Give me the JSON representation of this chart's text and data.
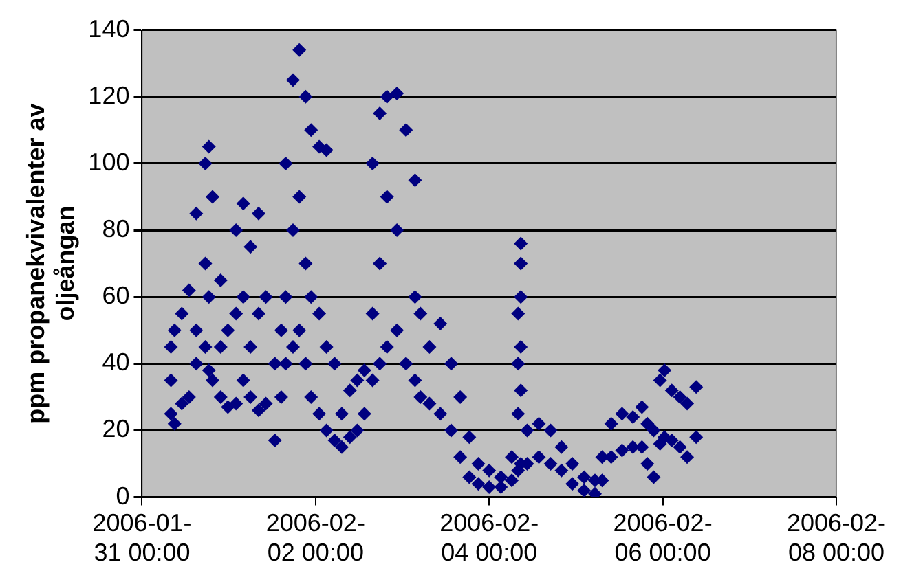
{
  "chart_data": {
    "type": "scatter",
    "ylabel": "ppm propanekvivalenter av oljeångan",
    "x": [
      "2006-01-31T08:00",
      "2006-01-31T08:00",
      "2006-01-31T08:00",
      "2006-01-31T09:00",
      "2006-01-31T09:00",
      "2006-01-31T11:00",
      "2006-01-31T11:00",
      "2006-01-31T13:00",
      "2006-01-31T13:00",
      "2006-01-31T15:00",
      "2006-01-31T15:00",
      "2006-01-31T15:00",
      "2006-01-31T17:30",
      "2006-01-31T17:30",
      "2006-01-31T17:30",
      "2006-01-31T18:30",
      "2006-01-31T18:30",
      "2006-01-31T18:30",
      "2006-01-31T19:30",
      "2006-01-31T19:30",
      "2006-01-31T21:45",
      "2006-01-31T21:45",
      "2006-01-31T21:45",
      "2006-01-31T23:45",
      "2006-01-31T23:45",
      "2006-02-01T02:00",
      "2006-02-01T02:00",
      "2006-02-01T02:00",
      "2006-02-01T04:00",
      "2006-02-01T04:00",
      "2006-02-01T04:00",
      "2006-02-01T06:00",
      "2006-02-01T06:00",
      "2006-02-01T06:00",
      "2006-02-01T08:15",
      "2006-02-01T08:15",
      "2006-02-01T08:15",
      "2006-02-01T10:15",
      "2006-02-01T10:15",
      "2006-02-01T12:45",
      "2006-02-01T12:45",
      "2006-02-01T14:30",
      "2006-02-01T14:30",
      "2006-02-01T15:45",
      "2006-02-01T15:45",
      "2006-02-01T15:45",
      "2006-02-01T17:45",
      "2006-02-01T17:45",
      "2006-02-01T17:45",
      "2006-02-01T19:30",
      "2006-02-01T19:30",
      "2006-02-01T19:30",
      "2006-02-01T21:15",
      "2006-02-01T21:15",
      "2006-02-01T21:15",
      "2006-02-01T22:45",
      "2006-02-01T22:45",
      "2006-02-01T22:45",
      "2006-02-02T01:00",
      "2006-02-02T01:00",
      "2006-02-02T01:00",
      "2006-02-02T03:00",
      "2006-02-02T03:00",
      "2006-02-02T03:00",
      "2006-02-02T05:15",
      "2006-02-02T05:15",
      "2006-02-02T07:15",
      "2006-02-02T07:15",
      "2006-02-02T09:30",
      "2006-02-02T09:30",
      "2006-02-02T11:30",
      "2006-02-02T11:30",
      "2006-02-02T13:30",
      "2006-02-02T13:30",
      "2006-02-02T15:45",
      "2006-02-02T15:45",
      "2006-02-02T15:45",
      "2006-02-02T17:45",
      "2006-02-02T17:45",
      "2006-02-02T17:45",
      "2006-02-02T19:45",
      "2006-02-02T19:45",
      "2006-02-02T19:45",
      "2006-02-02T22:30",
      "2006-02-02T22:30",
      "2006-02-02T22:30",
      "2006-02-03T01:00",
      "2006-02-03T01:00",
      "2006-02-03T03:30",
      "2006-02-03T03:30",
      "2006-02-03T03:30",
      "2006-02-03T05:00",
      "2006-02-03T05:00",
      "2006-02-03T07:30",
      "2006-02-03T07:30",
      "2006-02-03T10:30",
      "2006-02-03T10:30",
      "2006-02-03T13:30",
      "2006-02-03T13:30",
      "2006-02-03T16:00",
      "2006-02-03T16:00",
      "2006-02-03T18:30",
      "2006-02-03T18:30",
      "2006-02-03T21:00",
      "2006-02-03T21:00",
      "2006-02-04T00:00",
      "2006-02-04T00:00",
      "2006-02-04T03:15",
      "2006-02-04T03:15",
      "2006-02-04T06:15",
      "2006-02-04T06:15",
      "2006-02-04T08:00",
      "2006-02-04T08:00",
      "2006-02-04T08:00",
      "2006-02-04T08:00",
      "2006-02-04T08:45",
      "2006-02-04T08:45",
      "2006-02-04T08:45",
      "2006-02-04T08:45",
      "2006-02-04T08:45",
      "2006-02-04T08:45",
      "2006-02-04T10:30",
      "2006-02-04T10:30",
      "2006-02-04T13:45",
      "2006-02-04T13:45",
      "2006-02-04T17:00",
      "2006-02-04T17:00",
      "2006-02-04T20:00",
      "2006-02-04T20:00",
      "2006-02-04T23:00",
      "2006-02-04T23:00",
      "2006-02-05T02:15",
      "2006-02-05T02:15",
      "2006-02-05T05:15",
      "2006-02-05T05:15",
      "2006-02-05T07:15",
      "2006-02-05T07:15",
      "2006-02-05T09:45",
      "2006-02-05T09:45",
      "2006-02-05T12:45",
      "2006-02-05T12:45",
      "2006-02-05T15:45",
      "2006-02-05T15:45",
      "2006-02-05T18:15",
      "2006-02-05T18:15",
      "2006-02-05T19:45",
      "2006-02-05T19:45",
      "2006-02-05T21:30",
      "2006-02-05T21:30",
      "2006-02-05T23:15",
      "2006-02-05T23:15",
      "2006-02-06T00:30",
      "2006-02-06T00:30",
      "2006-02-06T02:30",
      "2006-02-06T02:30",
      "2006-02-06T04:45",
      "2006-02-06T04:45",
      "2006-02-06T06:45",
      "2006-02-06T06:45",
      "2006-02-06T09:15",
      "2006-02-06T09:15"
    ],
    "values": [
      25,
      45,
      35,
      22,
      50,
      28,
      55,
      30,
      62,
      40,
      85,
      50,
      45,
      100,
      70,
      38,
      105,
      60,
      35,
      90,
      30,
      65,
      45,
      27,
      50,
      28,
      80,
      55,
      35,
      88,
      60,
      30,
      75,
      45,
      26,
      85,
      55,
      28,
      60,
      17,
      40,
      30,
      50,
      40,
      100,
      60,
      45,
      125,
      80,
      50,
      134,
      90,
      40,
      120,
      70,
      30,
      110,
      60,
      25,
      105,
      55,
      20,
      104,
      45,
      17,
      40,
      15,
      25,
      18,
      32,
      20,
      35,
      25,
      38,
      35,
      55,
      100,
      40,
      115,
      70,
      45,
      120,
      90,
      50,
      121,
      80,
      40,
      110,
      35,
      95,
      60,
      30,
      55,
      28,
      45,
      25,
      52,
      20,
      40,
      12,
      30,
      6,
      18,
      4,
      10,
      3,
      8,
      3,
      6,
      5,
      12,
      8,
      25,
      40,
      55,
      10,
      32,
      45,
      60,
      70,
      76,
      10,
      20,
      12,
      22,
      10,
      20,
      8,
      15,
      4,
      10,
      2,
      6,
      1,
      5,
      5,
      12,
      12,
      22,
      14,
      25,
      15,
      24,
      15,
      27,
      10,
      22,
      6,
      20,
      16,
      35,
      18,
      38,
      17,
      32,
      15,
      30,
      12,
      28,
      18,
      33
    ],
    "color": "#000080",
    "marker": "diamond",
    "grid": "y",
    "legend": false,
    "xlim": [
      "2006-01-31T00:00",
      "2006-02-08T00:00"
    ],
    "xticks": [
      {
        "value": "2006-01-31T00:00",
        "label": "2006-01-31 00:00"
      },
      {
        "value": "2006-02-02T00:00",
        "label": "2006-02-02 00:00"
      },
      {
        "value": "2006-02-04T00:00",
        "label": "2006-02-04 00:00"
      },
      {
        "value": "2006-02-06T00:00",
        "label": "2006-02-06 00:00"
      },
      {
        "value": "2006-02-08T00:00",
        "label": "2006-02-08 00:00"
      }
    ],
    "ylim": [
      0,
      140
    ],
    "yticks": [
      0,
      20,
      40,
      60,
      80,
      100,
      120,
      140
    ]
  }
}
